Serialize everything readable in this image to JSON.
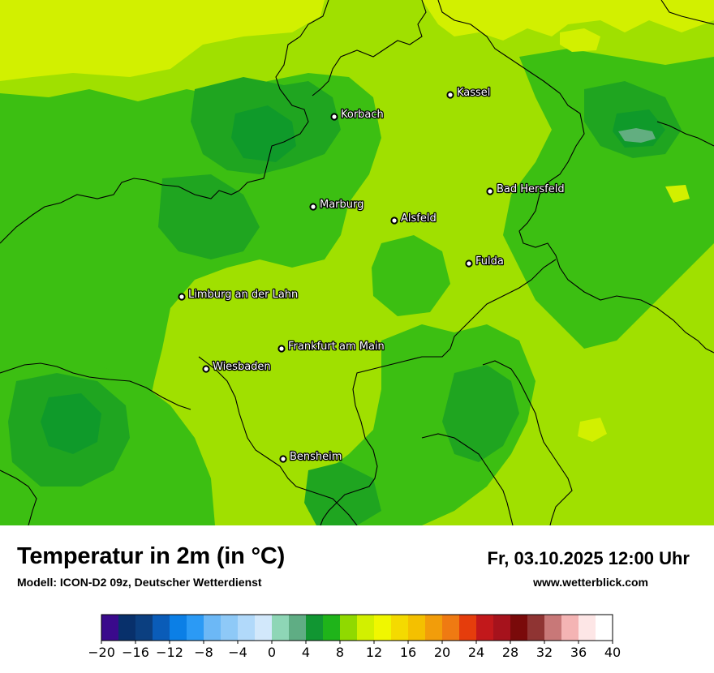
{
  "map": {
    "cities": [
      {
        "name": "Kassel"
      },
      {
        "name": "Korbach"
      },
      {
        "name": "Bad Hersfeld"
      },
      {
        "name": "Marburg"
      },
      {
        "name": "Alsfeld"
      },
      {
        "name": "Fulda"
      },
      {
        "name": "Limburg an der Lahn"
      },
      {
        "name": "Frankfurt am Main"
      },
      {
        "name": "Wiesbaden"
      },
      {
        "name": "Bensheim"
      }
    ],
    "colors": {
      "lime_light": "#d2f000",
      "yellow_green": "#a0e000",
      "green_mid": "#3cbf12",
      "green_dark": "#1fa520",
      "green_deep": "#0f9a2a",
      "teal_spot": "#62ae80",
      "border": "#000000"
    }
  },
  "footer": {
    "title": "Temperatur in 2m (in °C)",
    "subtitle": "Modell: ICON-D2 09z, Deutscher Wetterdienst",
    "datetime": "Fr, 03.10.2025 12:00 Uhr",
    "website": "www.wetterblick.com"
  },
  "legend": {
    "ticks": [
      "−20",
      "−16",
      "−12",
      "−8",
      "−4",
      "0",
      "4",
      "8",
      "12",
      "16",
      "20",
      "24",
      "28",
      "32",
      "36",
      "40"
    ],
    "colors": [
      "#3a0a8c",
      "#08306b",
      "#0b3f80",
      "#0a5cb8",
      "#0b7fe6",
      "#2b9af5",
      "#6cb8f6",
      "#8ec9f7",
      "#b1d9fa",
      "#d2e8fb",
      "#8ed6b6",
      "#5fad84",
      "#119632",
      "#1fb41a",
      "#90d900",
      "#d2f000",
      "#f0f700",
      "#f4da00",
      "#f4c000",
      "#f29d0a",
      "#ef7a12",
      "#e53d0c",
      "#c2181b",
      "#a6121c",
      "#7a0a0a",
      "#8f3433",
      "#c87878",
      "#f4b4b4",
      "#fde6e6",
      "#ffffff"
    ]
  }
}
